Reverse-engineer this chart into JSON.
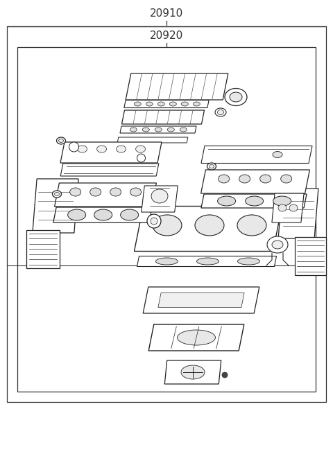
{
  "label_20910": "20910",
  "label_20920": "20920",
  "bg_color": "#ffffff",
  "line_color": "#333333",
  "part_edge": "#222222",
  "font_size_label": 11
}
